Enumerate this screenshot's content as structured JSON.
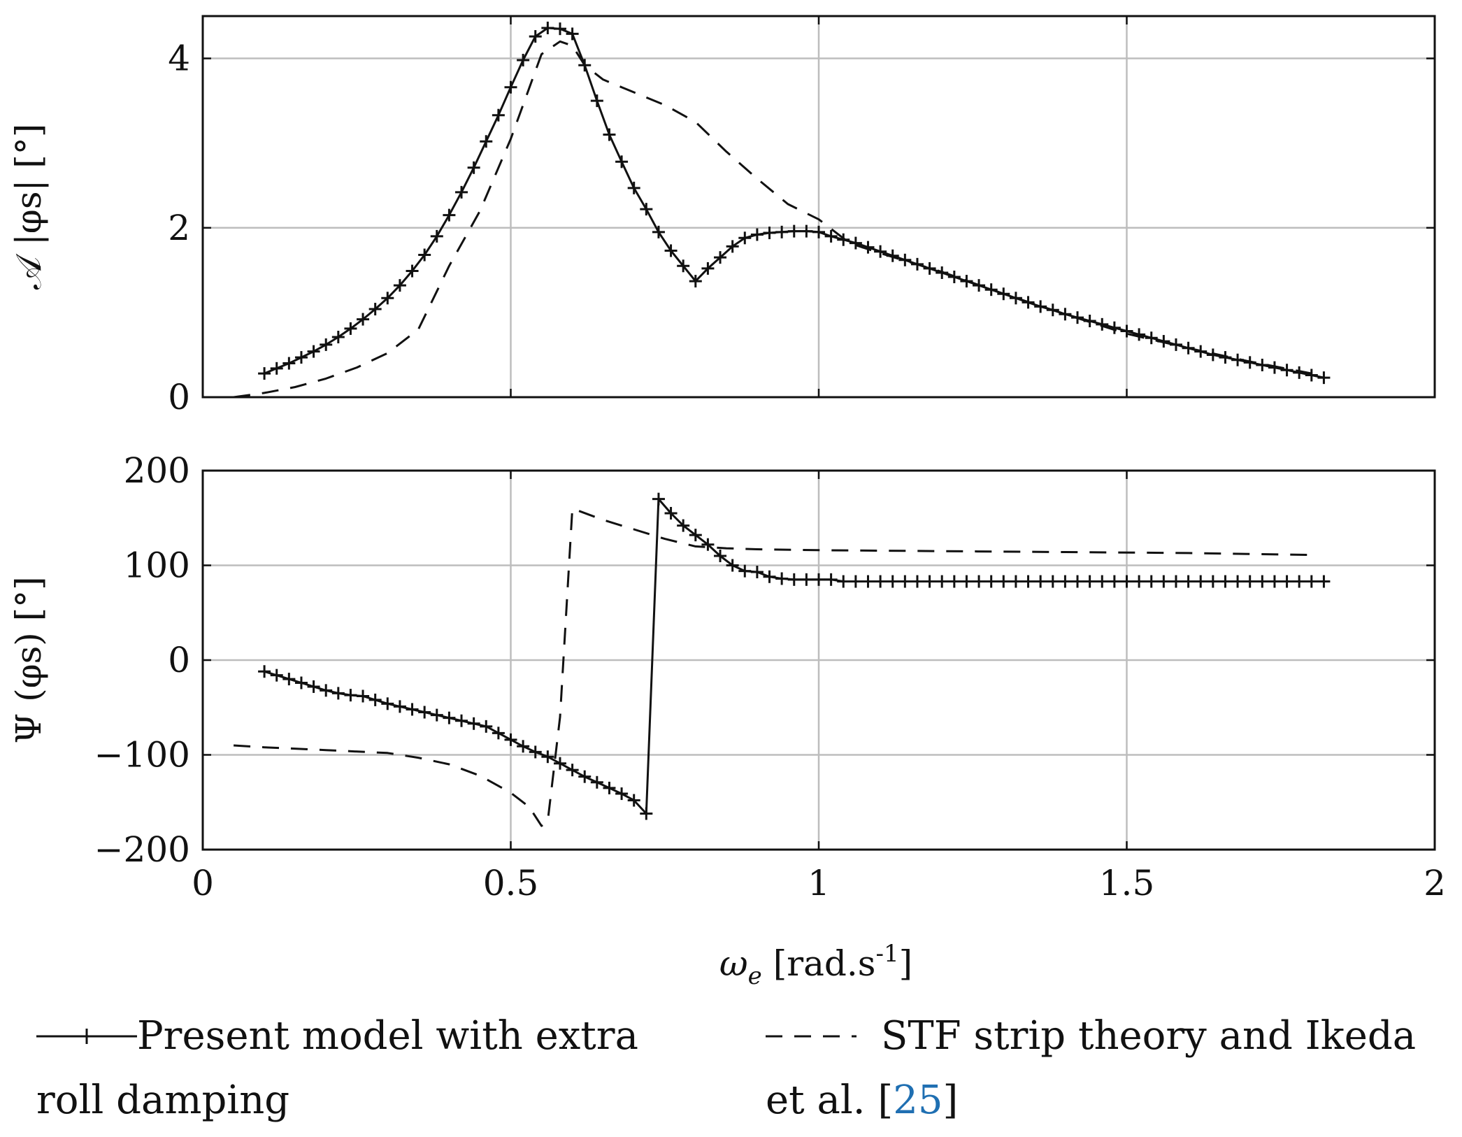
{
  "chart_data": [
    {
      "type": "line",
      "ylabel": "𝒜 |φs| [°]",
      "ylim": [
        0,
        4.5
      ],
      "yticks": [
        0,
        2,
        4
      ],
      "xlim": [
        0,
        2
      ],
      "grid": true,
      "series": [
        {
          "name": "Present model with extra roll damping",
          "style": "solid-plus",
          "x": [
            0.1,
            0.12,
            0.14,
            0.16,
            0.18,
            0.2,
            0.22,
            0.24,
            0.26,
            0.28,
            0.3,
            0.32,
            0.34,
            0.36,
            0.38,
            0.4,
            0.42,
            0.44,
            0.46,
            0.48,
            0.5,
            0.52,
            0.54,
            0.56,
            0.58,
            0.6,
            0.62,
            0.64,
            0.66,
            0.68,
            0.7,
            0.72,
            0.74,
            0.76,
            0.78,
            0.8,
            0.82,
            0.84,
            0.86,
            0.88,
            0.9,
            0.92,
            0.94,
            0.96,
            0.98,
            1.0,
            1.02,
            1.04,
            1.06,
            1.08,
            1.1,
            1.12,
            1.14,
            1.16,
            1.18,
            1.2,
            1.22,
            1.24,
            1.26,
            1.28,
            1.3,
            1.32,
            1.34,
            1.36,
            1.38,
            1.4,
            1.42,
            1.44,
            1.46,
            1.48,
            1.5,
            1.52,
            1.54,
            1.56,
            1.58,
            1.6,
            1.62,
            1.64,
            1.66,
            1.68,
            1.7,
            1.72,
            1.74,
            1.76,
            1.78,
            1.8,
            1.82
          ],
          "y": [
            0.28,
            0.34,
            0.4,
            0.47,
            0.54,
            0.62,
            0.71,
            0.81,
            0.92,
            1.04,
            1.17,
            1.32,
            1.49,
            1.68,
            1.9,
            2.15,
            2.42,
            2.71,
            3.02,
            3.33,
            3.66,
            3.98,
            4.26,
            4.36,
            4.35,
            4.29,
            3.92,
            3.5,
            3.1,
            2.78,
            2.47,
            2.22,
            1.95,
            1.73,
            1.55,
            1.37,
            1.52,
            1.65,
            1.78,
            1.88,
            1.92,
            1.94,
            1.95,
            1.96,
            1.96,
            1.95,
            1.9,
            1.86,
            1.82,
            1.77,
            1.72,
            1.67,
            1.62,
            1.57,
            1.52,
            1.47,
            1.42,
            1.37,
            1.32,
            1.27,
            1.22,
            1.17,
            1.12,
            1.07,
            1.03,
            0.98,
            0.94,
            0.9,
            0.86,
            0.82,
            0.78,
            0.74,
            0.7,
            0.66,
            0.62,
            0.58,
            0.54,
            0.5,
            0.47,
            0.44,
            0.41,
            0.38,
            0.35,
            0.32,
            0.29,
            0.26,
            0.23
          ]
        },
        {
          "name": "STF strip theory and Ikeda et al. [25]",
          "style": "dashed",
          "x": [
            0.05,
            0.1,
            0.15,
            0.2,
            0.25,
            0.3,
            0.35,
            0.4,
            0.45,
            0.5,
            0.55,
            0.58,
            0.6,
            0.62,
            0.65,
            0.7,
            0.75,
            0.8,
            0.85,
            0.9,
            0.95,
            1.0,
            1.05,
            1.1,
            1.2,
            1.3,
            1.4,
            1.5,
            1.6,
            1.7,
            1.8,
            1.82
          ],
          "y": [
            0.0,
            0.05,
            0.12,
            0.22,
            0.35,
            0.52,
            0.8,
            1.55,
            2.2,
            3.05,
            4.05,
            4.2,
            4.15,
            3.92,
            3.75,
            3.6,
            3.45,
            3.25,
            2.9,
            2.58,
            2.28,
            2.1,
            1.82,
            1.7,
            1.48,
            1.22,
            0.98,
            0.75,
            0.58,
            0.42,
            0.28,
            0.24
          ]
        }
      ]
    },
    {
      "type": "line",
      "ylabel": "Ψ (φs) [°]",
      "ylim": [
        -200,
        200
      ],
      "yticks": [
        -200,
        -100,
        0,
        100,
        200
      ],
      "ytick_labels": [
        "−200",
        "−100",
        "0",
        "100",
        "200"
      ],
      "xlim": [
        0,
        2
      ],
      "xticks": [
        0,
        0.5,
        1,
        1.5,
        2
      ],
      "xtick_labels": [
        "0",
        "0.5",
        "1",
        "1.5",
        "2"
      ],
      "xlabel": "ωe [rad.s-1]",
      "grid": true,
      "series": [
        {
          "name": "Present model with extra roll damping",
          "style": "solid-plus",
          "x": [
            0.1,
            0.12,
            0.14,
            0.16,
            0.18,
            0.2,
            0.22,
            0.24,
            0.26,
            0.28,
            0.3,
            0.32,
            0.34,
            0.36,
            0.38,
            0.4,
            0.42,
            0.44,
            0.46,
            0.48,
            0.5,
            0.52,
            0.54,
            0.56,
            0.58,
            0.6,
            0.62,
            0.64,
            0.66,
            0.68,
            0.7,
            0.72,
            0.74,
            0.76,
            0.78,
            0.8,
            0.82,
            0.84,
            0.86,
            0.88,
            0.9,
            0.92,
            0.94,
            0.96,
            0.98,
            1.0,
            1.02,
            1.04,
            1.06,
            1.08,
            1.1,
            1.12,
            1.14,
            1.16,
            1.18,
            1.2,
            1.22,
            1.24,
            1.26,
            1.28,
            1.3,
            1.32,
            1.34,
            1.36,
            1.38,
            1.4,
            1.42,
            1.44,
            1.46,
            1.48,
            1.5,
            1.52,
            1.54,
            1.56,
            1.58,
            1.6,
            1.62,
            1.64,
            1.66,
            1.68,
            1.7,
            1.72,
            1.74,
            1.76,
            1.78,
            1.8,
            1.82
          ],
          "y": [
            -12,
            -16,
            -20,
            -24,
            -28,
            -32,
            -35,
            -37,
            -38,
            -42,
            -46,
            -49,
            -52,
            -55,
            -58,
            -61,
            -64,
            -67,
            -70,
            -77,
            -84,
            -91,
            -97,
            -102,
            -109,
            -116,
            -123,
            -129,
            -135,
            -141,
            -148,
            -162,
            170,
            155,
            142,
            132,
            122,
            110,
            100,
            94,
            93,
            88,
            86,
            85,
            85,
            85,
            85,
            83,
            83,
            83,
            83,
            83,
            83,
            83,
            83,
            83,
            83,
            83,
            83,
            83,
            83,
            83,
            83,
            83,
            83,
            83,
            83,
            83,
            83,
            83,
            83,
            83,
            83,
            83,
            83,
            83,
            83,
            83,
            83,
            83,
            83,
            83,
            83,
            83,
            83,
            83,
            83
          ]
        },
        {
          "name": "STF strip theory and Ikeda et al. [25]",
          "style": "dashed",
          "x": [
            0.05,
            0.1,
            0.2,
            0.3,
            0.35,
            0.4,
            0.45,
            0.5,
            0.53,
            0.55,
            0.56,
            0.58,
            0.6,
            0.65,
            0.7,
            0.75,
            0.8,
            0.85,
            0.9,
            1.0,
            1.2,
            1.4,
            1.6,
            1.8
          ],
          "y": [
            -90,
            -92,
            -95,
            -98,
            -103,
            -110,
            -122,
            -140,
            -155,
            -175,
            -170,
            -60,
            160,
            148,
            138,
            128,
            120,
            118,
            117,
            116,
            115,
            114,
            113,
            111
          ]
        }
      ]
    }
  ],
  "legend": {
    "entry1_line1": "Present model with extra",
    "entry1_line2": "roll damping",
    "entry2_line1": "STF strip theory and Ikeda",
    "entry2_line2": "et al. [",
    "entry2_cite": "25",
    "entry2_close": "]"
  }
}
